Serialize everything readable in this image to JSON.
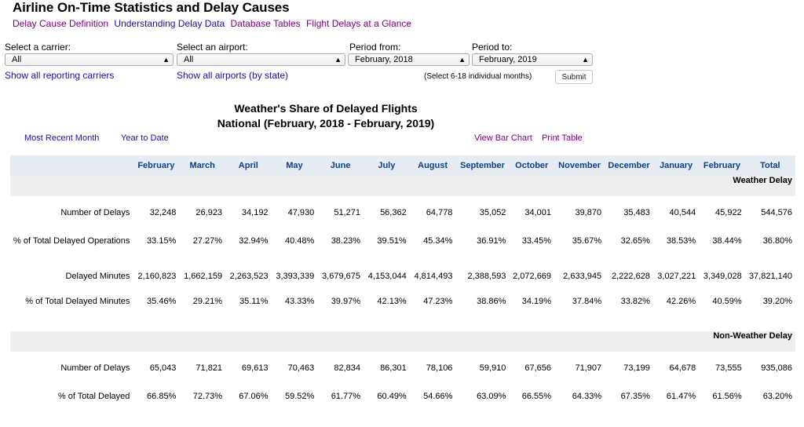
{
  "header": {
    "title": "Airline On-Time Statistics and Delay Causes",
    "links": [
      {
        "label": "Delay Cause Definition",
        "visited": true
      },
      {
        "label": "Understanding Delay Data",
        "visited": false
      },
      {
        "label": "Database Tables",
        "visited": true
      },
      {
        "label": "Flight Delays at a Glance",
        "visited": true
      }
    ]
  },
  "filters": {
    "carrier": {
      "label": "Select a carrier:",
      "value": "All",
      "link": "Show all reporting carriers"
    },
    "airport": {
      "label": "Select an airport:",
      "value": "All",
      "link": "Show all airports (by state)"
    },
    "period_from": {
      "label": "Period from:",
      "value": "February, 2018"
    },
    "period_to": {
      "label": "Period to:",
      "value": "February, 2019"
    },
    "hint": "(Select 6-18 individual months)",
    "submit": "Submit"
  },
  "report": {
    "title_line1": "Weather's Share of Delayed Flights",
    "title_line2": "National (February, 2018 - February, 2019)",
    "most_recent": "Most Recent Month",
    "year_to_date": "Year to Date",
    "view_bar_chart": "View Bar Chart",
    "print_table": "Print Table"
  },
  "table": {
    "columns": [
      "February",
      "March",
      "April",
      "May",
      "June",
      "July",
      "August",
      "September",
      "October",
      "November",
      "December",
      "January",
      "February",
      "Total"
    ],
    "sections": [
      {
        "title": "Weather Delay",
        "rows": [
          {
            "label": "Number of Delays",
            "values": [
              "32,248",
              "26,923",
              "34,192",
              "47,930",
              "51,271",
              "56,362",
              "64,778",
              "35,052",
              "34,001",
              "39,870",
              "35,483",
              "40,544",
              "45,922",
              "544,576"
            ]
          },
          {
            "label": "% of Total Delayed Operations",
            "values": [
              "33.15%",
              "27.27%",
              "32.94%",
              "40.48%",
              "38.23%",
              "39.51%",
              "45.34%",
              "36.91%",
              "33.45%",
              "35.67%",
              "32.65%",
              "38.53%",
              "38.44%",
              "36.80%"
            ]
          },
          {
            "label": "Delayed Minutes",
            "values": [
              "2,160,823",
              "1,662,159",
              "2,263,523",
              "3,393,339",
              "3,679,675",
              "4,153,044",
              "4,814,493",
              "2,388,593",
              "2,072,669",
              "2,633,945",
              "2,222,628",
              "3,027,221",
              "3,349,028",
              "37,821,140"
            ]
          },
          {
            "label": "% of Total Delayed Minutes",
            "values": [
              "35.46%",
              "29.21%",
              "35.11%",
              "43.33%",
              "39.97%",
              "42.13%",
              "47.23%",
              "38.86%",
              "34.19%",
              "37.84%",
              "33.82%",
              "42.26%",
              "40.59%",
              "39.20%"
            ]
          }
        ]
      },
      {
        "title": "Non-Weather Delay",
        "rows": [
          {
            "label": "Number of Delays",
            "values": [
              "65,043",
              "71,821",
              "69,613",
              "70,463",
              "82,834",
              "86,301",
              "78,106",
              "59,910",
              "67,656",
              "71,907",
              "73,199",
              "64,678",
              "73,555",
              "935,086"
            ]
          },
          {
            "label": "% of Total Delayed",
            "values": [
              "66.85%",
              "72.73%",
              "67.06%",
              "59.52%",
              "61.77%",
              "60.49%",
              "54.66%",
              "63.09%",
              "66.55%",
              "64.33%",
              "67.35%",
              "61.47%",
              "61.56%",
              "63.20%"
            ]
          }
        ]
      }
    ]
  },
  "colors": {
    "link": "#1a0dab",
    "visited": "#800080",
    "header_text": "#0b3f8f",
    "header_bg": "#e7ecf2",
    "section_bg": "#eeeeee"
  }
}
